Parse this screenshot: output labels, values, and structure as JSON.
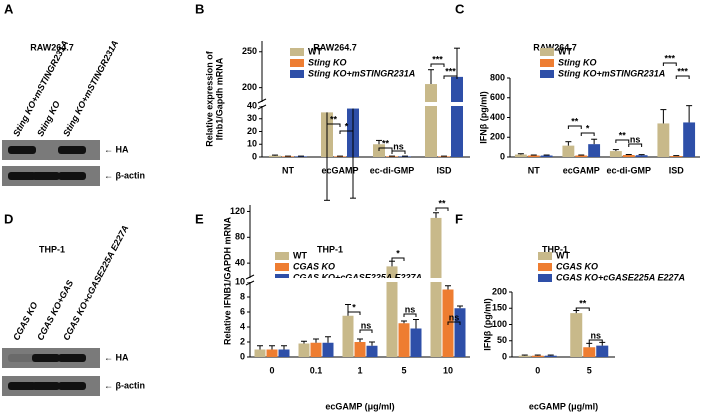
{
  "chart_data": [
    {
      "type": "bar",
      "label": "B",
      "title": "RAW264.7",
      "ylabel": [
        "Relative expression of",
        "Ifnb1/Gapdh mRNA"
      ],
      "categories": [
        "NT",
        "ecGAMP",
        "ec-di-GMP",
        "ISD"
      ],
      "series": [
        {
          "name": "WT",
          "color": "#c8b98a",
          "values": [
            1,
            35,
            10,
            205
          ],
          "errors": [
            0.5,
            8,
            3,
            20
          ]
        },
        {
          "name": "Sting KO",
          "color": "#ee7d31",
          "values": [
            0.5,
            0.5,
            0.5,
            0.5
          ],
          "errors": [
            0.2,
            0.2,
            0.2,
            0.2
          ]
        },
        {
          "name": "Sting KO+mSTINGR231A",
          "color": "#2e4fa8",
          "values": [
            0.5,
            38,
            0.5,
            215
          ],
          "errors": [
            0.2,
            8,
            0.2,
            40
          ]
        }
      ],
      "ylim": [
        0,
        265
      ],
      "axis_break": [
        40,
        180
      ],
      "yticks": [
        0,
        10,
        20,
        30,
        40,
        200,
        250
      ],
      "annotations": [
        "**",
        "*",
        "**",
        "ns",
        "***",
        "***"
      ]
    },
    {
      "type": "bar",
      "label": "C",
      "title": "RAW264.7",
      "ylabel": [
        "IFNβ (pg/ml)"
      ],
      "categories": [
        "NT",
        "ecGAMP",
        "ec-di-GMP",
        "ISD"
      ],
      "series": [
        {
          "name": "WT",
          "color": "#c8b98a",
          "values": [
            25,
            115,
            60,
            340
          ],
          "errors": [
            8,
            40,
            15,
            140
          ]
        },
        {
          "name": "Sting KO",
          "color": "#ee7d31",
          "values": [
            15,
            15,
            20,
            10
          ],
          "errors": [
            5,
            5,
            5,
            4
          ]
        },
        {
          "name": "Sting KO+mSTINGR231A",
          "color": "#2e4fa8",
          "values": [
            15,
            130,
            18,
            350
          ],
          "errors": [
            5,
            50,
            6,
            170
          ]
        }
      ],
      "ylim": [
        0,
        800
      ],
      "yticks": [
        0,
        200,
        400,
        600,
        800
      ],
      "annotations": [
        "**",
        "*",
        "**",
        "ns",
        "***",
        "***"
      ]
    },
    {
      "type": "bar",
      "label": "E",
      "title": "THP-1",
      "ylabel": [
        "Relative IFNB1/GAPDH mRNA"
      ],
      "xlabel": "ecGAMP (μg/ml)",
      "categories": [
        "0",
        "0.1",
        "1",
        "5",
        "10"
      ],
      "series": [
        {
          "name": "WT",
          "color": "#c8b98a",
          "values": [
            1,
            1.8,
            5.5,
            35,
            110
          ],
          "errors": [
            0.5,
            0.3,
            1.5,
            8,
            8
          ]
        },
        {
          "name": "CGAS KO",
          "color": "#ee7d31",
          "values": [
            1,
            1.9,
            2,
            4.5,
            9
          ],
          "errors": [
            0.5,
            0.5,
            0.4,
            0.3,
            0.5
          ]
        },
        {
          "name": "CGAS KO+cGASE225A E227A",
          "color": "#2e4fa8",
          "values": [
            1,
            1.9,
            1.5,
            3.8,
            6.5
          ],
          "errors": [
            0.5,
            0.8,
            0.5,
            1.2,
            0.3
          ]
        }
      ],
      "ylim": [
        0,
        130
      ],
      "axis_break": [
        10,
        17
      ],
      "yticks": [
        0,
        2,
        4,
        6,
        8,
        10,
        40,
        80,
        120
      ],
      "annotations": [
        "*",
        "ns",
        "*",
        "ns",
        "**",
        "ns"
      ]
    },
    {
      "type": "bar",
      "label": "F",
      "title": "THP-1",
      "ylabel": [
        "IFNβ (pg/ml)"
      ],
      "xlabel": "ecGAMP (μg/ml)",
      "categories": [
        "0",
        "5"
      ],
      "series": [
        {
          "name": "WT",
          "color": "#c8b98a",
          "values": [
            4,
            135
          ],
          "errors": [
            2,
            8
          ]
        },
        {
          "name": "CGAS KO",
          "color": "#ee7d31",
          "values": [
            4,
            30
          ],
          "errors": [
            2,
            12
          ]
        },
        {
          "name": "CGAS KO+cGASE225A E227A",
          "color": "#2e4fa8",
          "values": [
            4,
            35
          ],
          "errors": [
            2,
            10
          ]
        }
      ],
      "ylim": [
        0,
        200
      ],
      "yticks": [
        0,
        50,
        100,
        150,
        200
      ],
      "annotations": [
        "**",
        "ns"
      ]
    }
  ],
  "blots": [
    {
      "label": "A",
      "title": "RAW264.7",
      "lanes": [
        "Sting KO+mSTINGR231A",
        "Sting KO",
        "Sting KO+mSTINGR231A"
      ],
      "bands": [
        "← HA",
        "← β-actin"
      ]
    },
    {
      "label": "D",
      "title": "THP-1",
      "lanes": [
        "CGAS KO",
        "CGAS KO+GAS",
        "CGAS KO+cGASE225A E227A"
      ],
      "bands": [
        "← HA",
        "← β-actin"
      ]
    }
  ]
}
